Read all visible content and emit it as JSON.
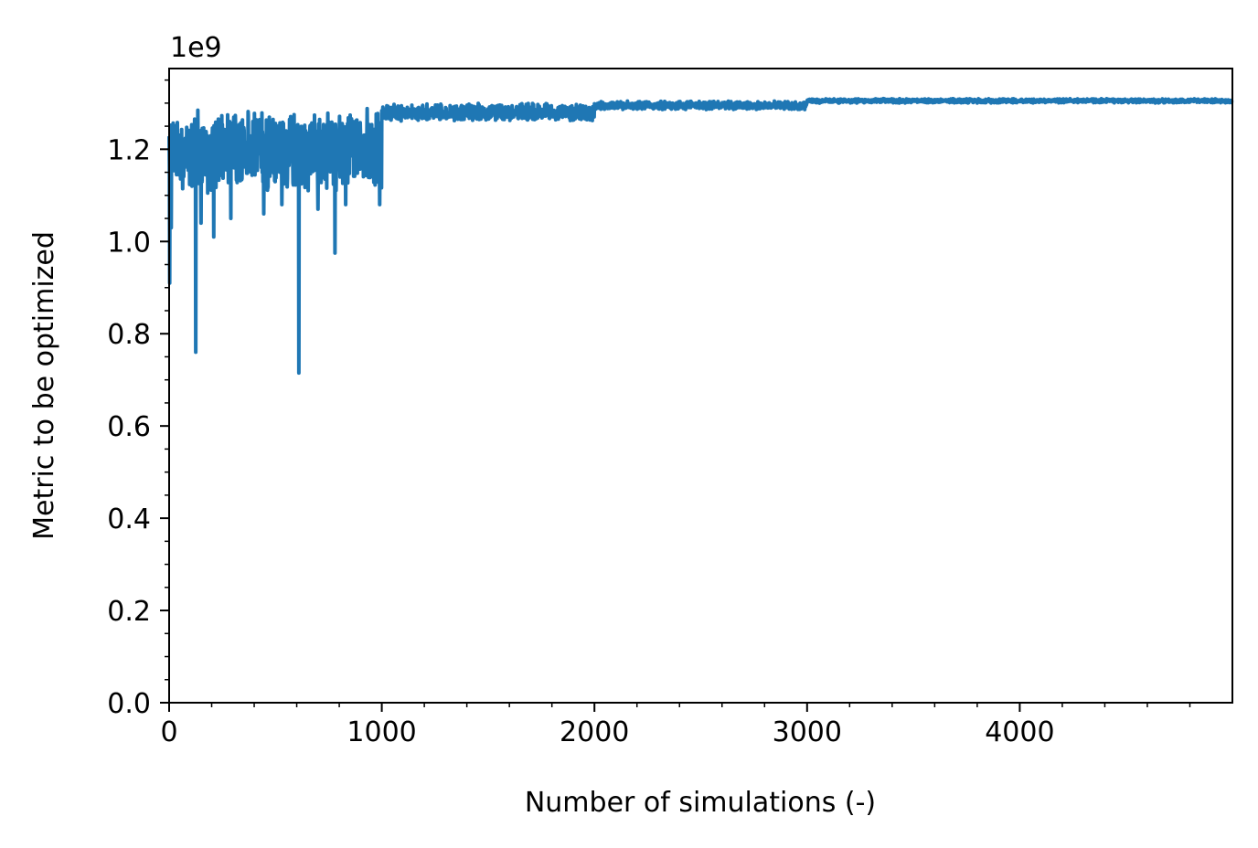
{
  "chart_data": {
    "type": "line",
    "title": "",
    "xlabel": "Number of simulations (-)",
    "ylabel": "Metric to be optimized",
    "y_offset_label": "1e9",
    "xlim": [
      0,
      5000
    ],
    "ylim": [
      0.0,
      1.375
    ],
    "xticks": [
      0,
      1000,
      2000,
      3000,
      4000
    ],
    "xtick_labels": [
      "0",
      "1000",
      "2000",
      "3000",
      "4000"
    ],
    "yticks": [
      0.0,
      0.2,
      0.4,
      0.6,
      0.8,
      1.0,
      1.2
    ],
    "ytick_labels": [
      "0.0",
      "0.2",
      "0.4",
      "0.6",
      "0.8",
      "1.0",
      "1.2"
    ],
    "grid": false,
    "legend": "none",
    "series_color": "#1f77b4",
    "series": [
      {
        "phases": [
          {
            "x_range": [
              0,
              1000
            ],
            "y_band": [
              1.1,
              1.29
            ]
          },
          {
            "x_range": [
              1000,
              2000
            ],
            "y_band": [
              1.26,
              1.3
            ]
          },
          {
            "x_range": [
              2000,
              3000
            ],
            "y_band": [
              1.285,
              1.305
            ]
          },
          {
            "x_range": [
              3000,
              5000
            ],
            "y_band": [
              1.3,
              1.31
            ]
          }
        ],
        "spikes": [
          {
            "x": 3,
            "y": 0.91
          },
          {
            "x": 10,
            "y": 1.03
          },
          {
            "x": 125,
            "y": 0.76
          },
          {
            "x": 150,
            "y": 1.04
          },
          {
            "x": 210,
            "y": 1.01
          },
          {
            "x": 290,
            "y": 1.05
          },
          {
            "x": 445,
            "y": 1.06
          },
          {
            "x": 530,
            "y": 1.08
          },
          {
            "x": 610,
            "y": 0.715
          },
          {
            "x": 700,
            "y": 1.07
          },
          {
            "x": 780,
            "y": 0.975
          },
          {
            "x": 830,
            "y": 1.08
          },
          {
            "x": 990,
            "y": 1.08
          }
        ]
      }
    ]
  }
}
